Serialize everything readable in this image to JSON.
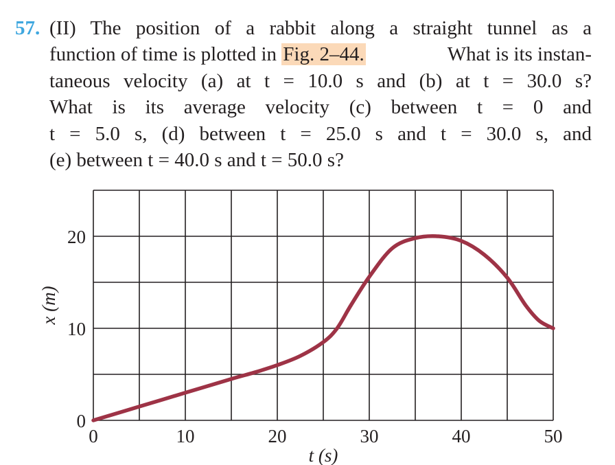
{
  "problem": {
    "number": "57.",
    "lines": [
      "(II) The position of a rabbit along a straight tunnel as a",
      "function of time is plotted in",
      "What is its instan-",
      "taneous velocity (a) at t = 10.0 s and (b) at t = 30.0 s?",
      "What is its average velocity (c) between t = 0 and",
      "t = 5.0 s, (d) between t = 25.0 s and t = 30.0 s, and",
      "(e) between t = 40.0 s and t = 50.0 s?"
    ],
    "figure_ref": "Fig. 2–44."
  },
  "chart_data": {
    "type": "line",
    "xlabel": "t (s)",
    "ylabel": "x (m)",
    "xlim": [
      0,
      50
    ],
    "ylim": [
      0,
      25
    ],
    "x_ticks": [
      "0",
      "10",
      "20",
      "30",
      "40",
      "50"
    ],
    "y_ticks": [
      "0",
      "10",
      "20"
    ],
    "grid": true,
    "series": [
      {
        "color": "#9e3346",
        "x": [
          0,
          5,
          10,
          15,
          17.5,
          20,
          22.5,
          25,
          26.5,
          28,
          30,
          32.5,
          35,
          37.5,
          40,
          42.5,
          45,
          47,
          48.5,
          50
        ],
        "y": [
          0,
          1.5,
          3,
          4.5,
          5.2,
          6,
          7,
          8.5,
          10,
          12.5,
          15.6,
          18.7,
          19.8,
          20,
          19.5,
          18,
          15.5,
          12.5,
          10.8,
          10
        ]
      }
    ]
  }
}
